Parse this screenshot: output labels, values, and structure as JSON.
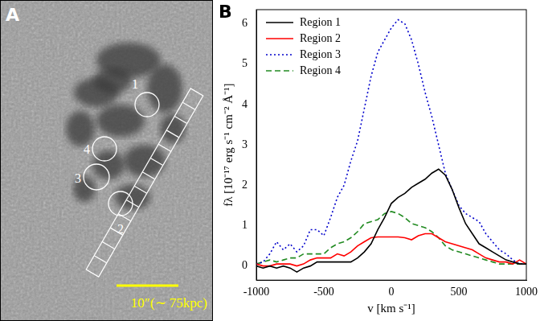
{
  "image_panel": {
    "letter": "A",
    "regions": [
      "1",
      "2",
      "3",
      "4"
    ],
    "scale_bar_label": "10″(∼ 75kpc)"
  },
  "chart_data": {
    "type": "line",
    "panel_label": "B",
    "x_label": "v [km s⁻¹]",
    "y_label": "fλ [10⁻¹⁷ erg s⁻¹ cm⁻² Å⁻¹]",
    "x": [
      -1000,
      -950,
      -900,
      -850,
      -800,
      -750,
      -700,
      -650,
      -600,
      -550,
      -500,
      -450,
      -400,
      -350,
      -300,
      -250,
      -200,
      -150,
      -100,
      -50,
      0,
      50,
      100,
      150,
      200,
      250,
      300,
      350,
      400,
      450,
      500,
      550,
      600,
      650,
      700,
      750,
      800,
      850,
      900,
      950,
      1000
    ],
    "series": [
      {
        "name": "Region 1",
        "color": "#000000",
        "line_style": "solid",
        "values": [
          0,
          -0.05,
          0,
          -0.05,
          0,
          -0.05,
          -0.15,
          -0.05,
          0,
          0.1,
          0.1,
          0.1,
          0.1,
          0.1,
          0.1,
          0.2,
          0.35,
          0.55,
          0.9,
          1.2,
          1.55,
          1.7,
          1.8,
          1.95,
          2.05,
          2.15,
          2.3,
          2.4,
          2.25,
          1.9,
          1.45,
          1.05,
          0.8,
          0.55,
          0.45,
          0.35,
          0.25,
          0.15,
          0.1,
          0.05,
          0.05
        ]
      },
      {
        "name": "Region 2",
        "color": "#ff0000",
        "line_style": "solid",
        "values": [
          0.05,
          0,
          0,
          0.05,
          0.05,
          0.05,
          0,
          0.05,
          0.15,
          0.2,
          0.2,
          0.2,
          0.3,
          0.25,
          0.35,
          0.5,
          0.6,
          0.7,
          0.72,
          0.72,
          0.72,
          0.72,
          0.7,
          0.65,
          0.75,
          0.8,
          0.8,
          0.7,
          0.6,
          0.55,
          0.5,
          0.45,
          0.4,
          0.3,
          0.2,
          0.15,
          0.1,
          0.1,
          0.05,
          0.15,
          0.05
        ]
      },
      {
        "name": "Region 3",
        "color": "#0000cc",
        "line_style": "dotted",
        "values": [
          0.05,
          0.1,
          0.3,
          0.6,
          0.4,
          0.55,
          0.35,
          0.5,
          0.9,
          0.9,
          0.75,
          1.2,
          1.7,
          2.0,
          2.6,
          3.1,
          3.9,
          4.7,
          5.3,
          5.6,
          5.9,
          6.1,
          6.0,
          5.6,
          5.0,
          4.3,
          3.7,
          3.0,
          2.3,
          1.9,
          1.5,
          1.3,
          1.2,
          1.1,
          0.8,
          0.6,
          0.4,
          0.3,
          0.15,
          0.05,
          0.05
        ]
      },
      {
        "name": "Region 4",
        "color": "#228b22",
        "line_style": "dashed",
        "values": [
          0.05,
          0.1,
          0.15,
          0.1,
          0.15,
          0.2,
          0.2,
          0.3,
          0.3,
          0.3,
          0.3,
          0.45,
          0.55,
          0.6,
          0.7,
          0.85,
          1.05,
          1.1,
          1.15,
          1.3,
          1.35,
          1.3,
          1.2,
          1.05,
          1.0,
          0.95,
          0.85,
          0.7,
          0.5,
          0.4,
          0.35,
          0.3,
          0.25,
          0.2,
          0.15,
          0.1,
          0.05,
          0.05,
          0.05,
          0.05,
          0.05
        ]
      }
    ],
    "xlim": [
      -1000,
      1000
    ],
    "xticks": [
      -1000,
      -500,
      0,
      500,
      1000
    ],
    "ylim": [
      -0.35,
      6.35
    ],
    "yticks": [
      0,
      1,
      2,
      3,
      4,
      5,
      6
    ],
    "grid": false,
    "legend": "upper left"
  }
}
